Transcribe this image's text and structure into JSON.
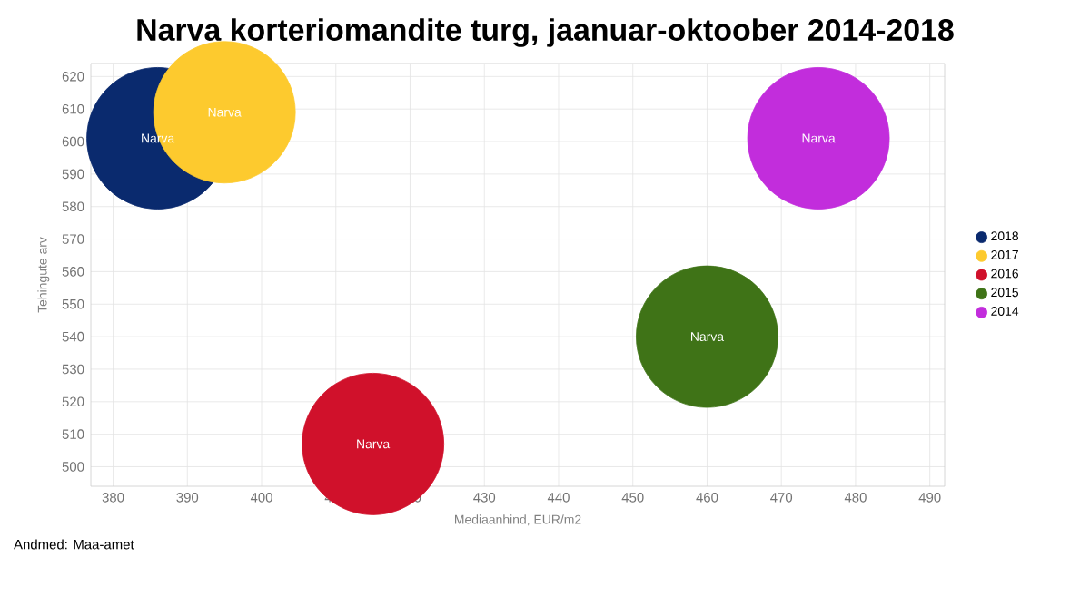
{
  "chart_data": {
    "type": "bubble",
    "title": "Narva korteriomandite turg, jaanuar-oktoober 2014-2018",
    "xlabel": "Mediaanhind, EUR/m2",
    "ylabel": "Tehingute arv",
    "xlim": [
      377,
      492
    ],
    "ylim": [
      494,
      624
    ],
    "xticks": [
      380,
      390,
      400,
      410,
      420,
      430,
      440,
      450,
      460,
      470,
      480,
      490
    ],
    "yticks": [
      500,
      510,
      520,
      530,
      540,
      550,
      560,
      570,
      580,
      590,
      600,
      610,
      620
    ],
    "grid": true,
    "legend": "right",
    "marker": "circle",
    "series": [
      {
        "name": "2018",
        "color": "#0a2a6e",
        "x": [
          386
        ],
        "values": [
          601
        ],
        "sizes": [
          1
        ]
      },
      {
        "name": "2017",
        "color": "#fdca2e",
        "x": [
          395
        ],
        "values": [
          609
        ],
        "sizes": [
          1
        ]
      },
      {
        "name": "2016",
        "color": "#d0112b",
        "x": [
          415
        ],
        "values": [
          507
        ],
        "sizes": [
          1
        ]
      },
      {
        "name": "2015",
        "color": "#3f7317",
        "x": [
          460
        ],
        "values": [
          540
        ],
        "sizes": [
          1
        ]
      },
      {
        "name": "2014",
        "color": "#c22ddc",
        "x": [
          475
        ],
        "values": [
          601
        ],
        "sizes": [
          1
        ]
      }
    ],
    "annotations": [
      {
        "text": "Narva",
        "x": 386,
        "y": 601
      },
      {
        "text": "Narva",
        "x": 395,
        "y": 609
      },
      {
        "text": "Narva",
        "x": 415,
        "y": 507
      },
      {
        "text": "Narva",
        "x": 460,
        "y": 540
      },
      {
        "text": "Narva",
        "x": 475,
        "y": 601
      },
      "Andmed: Maa-amet"
    ]
  }
}
